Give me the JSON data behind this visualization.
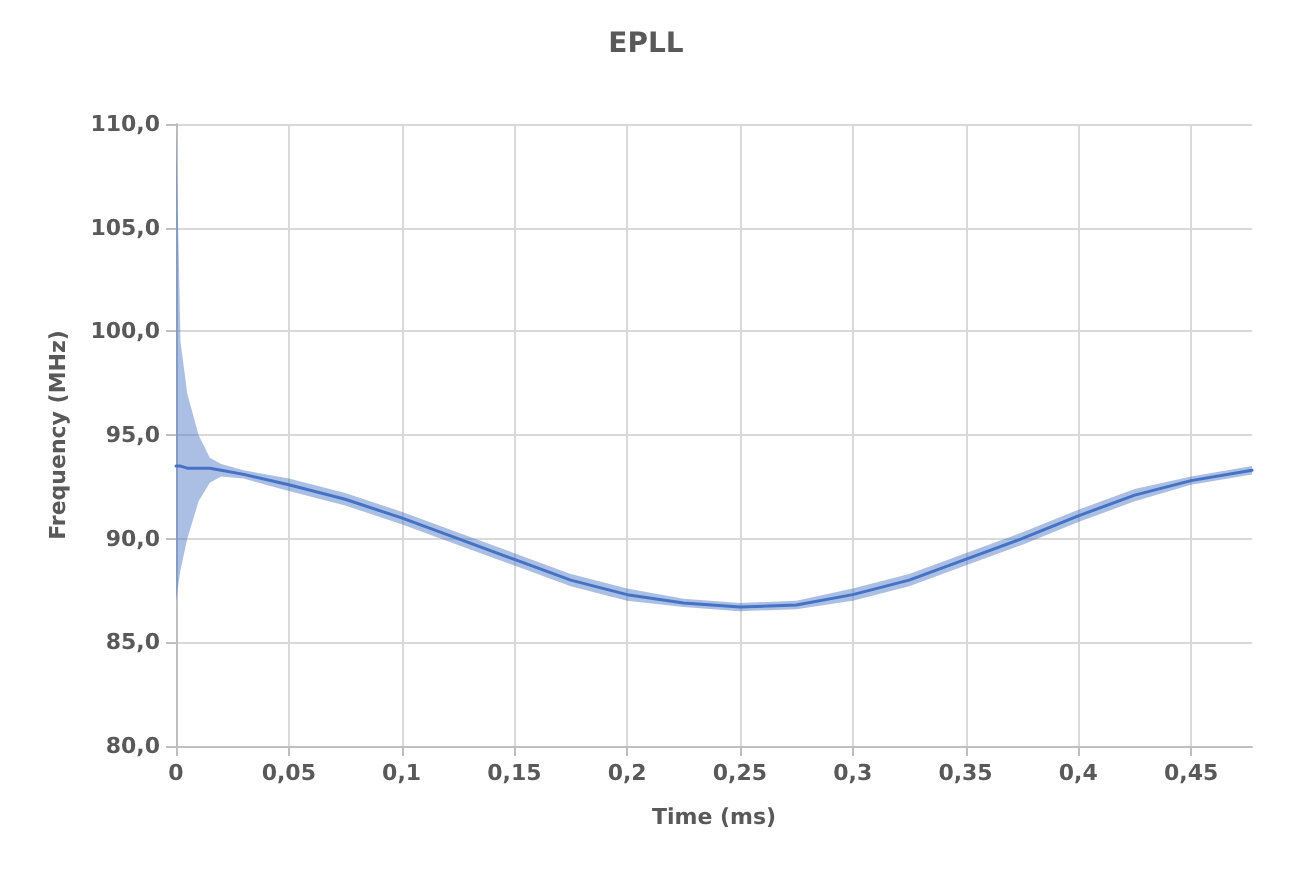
{
  "chart_data": {
    "type": "line",
    "title": "EPLL",
    "xlabel": "Time (ms)",
    "ylabel": "Frequency (MHz)",
    "x": [
      0,
      0.002,
      0.005,
      0.01,
      0.015,
      0.02,
      0.03,
      0.05,
      0.075,
      0.1,
      0.125,
      0.15,
      0.175,
      0.2,
      0.225,
      0.25,
      0.275,
      0.3,
      0.325,
      0.35,
      0.375,
      0.4,
      0.425,
      0.45,
      0.477
    ],
    "series": [
      {
        "color": "#4472c4",
        "values": [
          93.5,
          93.5,
          93.4,
          93.4,
          93.4,
          93.3,
          93.1,
          92.6,
          91.9,
          91.0,
          90.0,
          89.0,
          88.0,
          87.3,
          86.9,
          86.7,
          86.8,
          87.3,
          88.0,
          89.0,
          90.0,
          91.1,
          92.1,
          92.8,
          93.3
        ],
        "upper": [
          110.0,
          99.5,
          97.0,
          95.0,
          93.9,
          93.6,
          93.3,
          92.9,
          92.2,
          91.3,
          90.3,
          89.3,
          88.3,
          87.6,
          87.1,
          86.9,
          87.0,
          87.6,
          88.3,
          89.3,
          90.3,
          91.4,
          92.4,
          93.0,
          93.5
        ],
        "lower": [
          87.0,
          88.5,
          90.0,
          91.8,
          92.7,
          93.0,
          92.9,
          92.3,
          91.6,
          90.7,
          89.7,
          88.7,
          87.7,
          87.0,
          86.7,
          86.5,
          86.6,
          87.0,
          87.7,
          88.7,
          89.7,
          90.8,
          91.8,
          92.6,
          93.1
        ]
      }
    ],
    "xlim": [
      0,
      0.477
    ],
    "xticks": [
      0,
      {
        "value": 0.05,
        "label": "0,05"
      },
      {
        "value": 0.1,
        "label": "0,1"
      },
      {
        "value": 0.15,
        "label": "0,15"
      },
      {
        "value": 0.2,
        "label": "0,2"
      },
      {
        "value": 0.25,
        "label": "0,25"
      },
      {
        "value": 0.3,
        "label": "0,3"
      },
      {
        "value": 0.35,
        "label": "0,35"
      },
      {
        "value": 0.4,
        "label": "0,4"
      },
      {
        "value": 0.45,
        "label": "0,45"
      }
    ],
    "ylim": [
      80,
      110
    ],
    "yticks": [
      {
        "value": 80,
        "label": "80,0"
      },
      {
        "value": 85,
        "label": "85,0"
      },
      {
        "value": 90,
        "label": "90,0"
      },
      {
        "value": 95,
        "label": "95,0"
      },
      {
        "value": 100,
        "label": "100,0"
      },
      {
        "value": 105,
        "label": "105,0"
      },
      {
        "value": 110,
        "label": "110,0"
      }
    ],
    "grid": true,
    "marker": "none"
  }
}
